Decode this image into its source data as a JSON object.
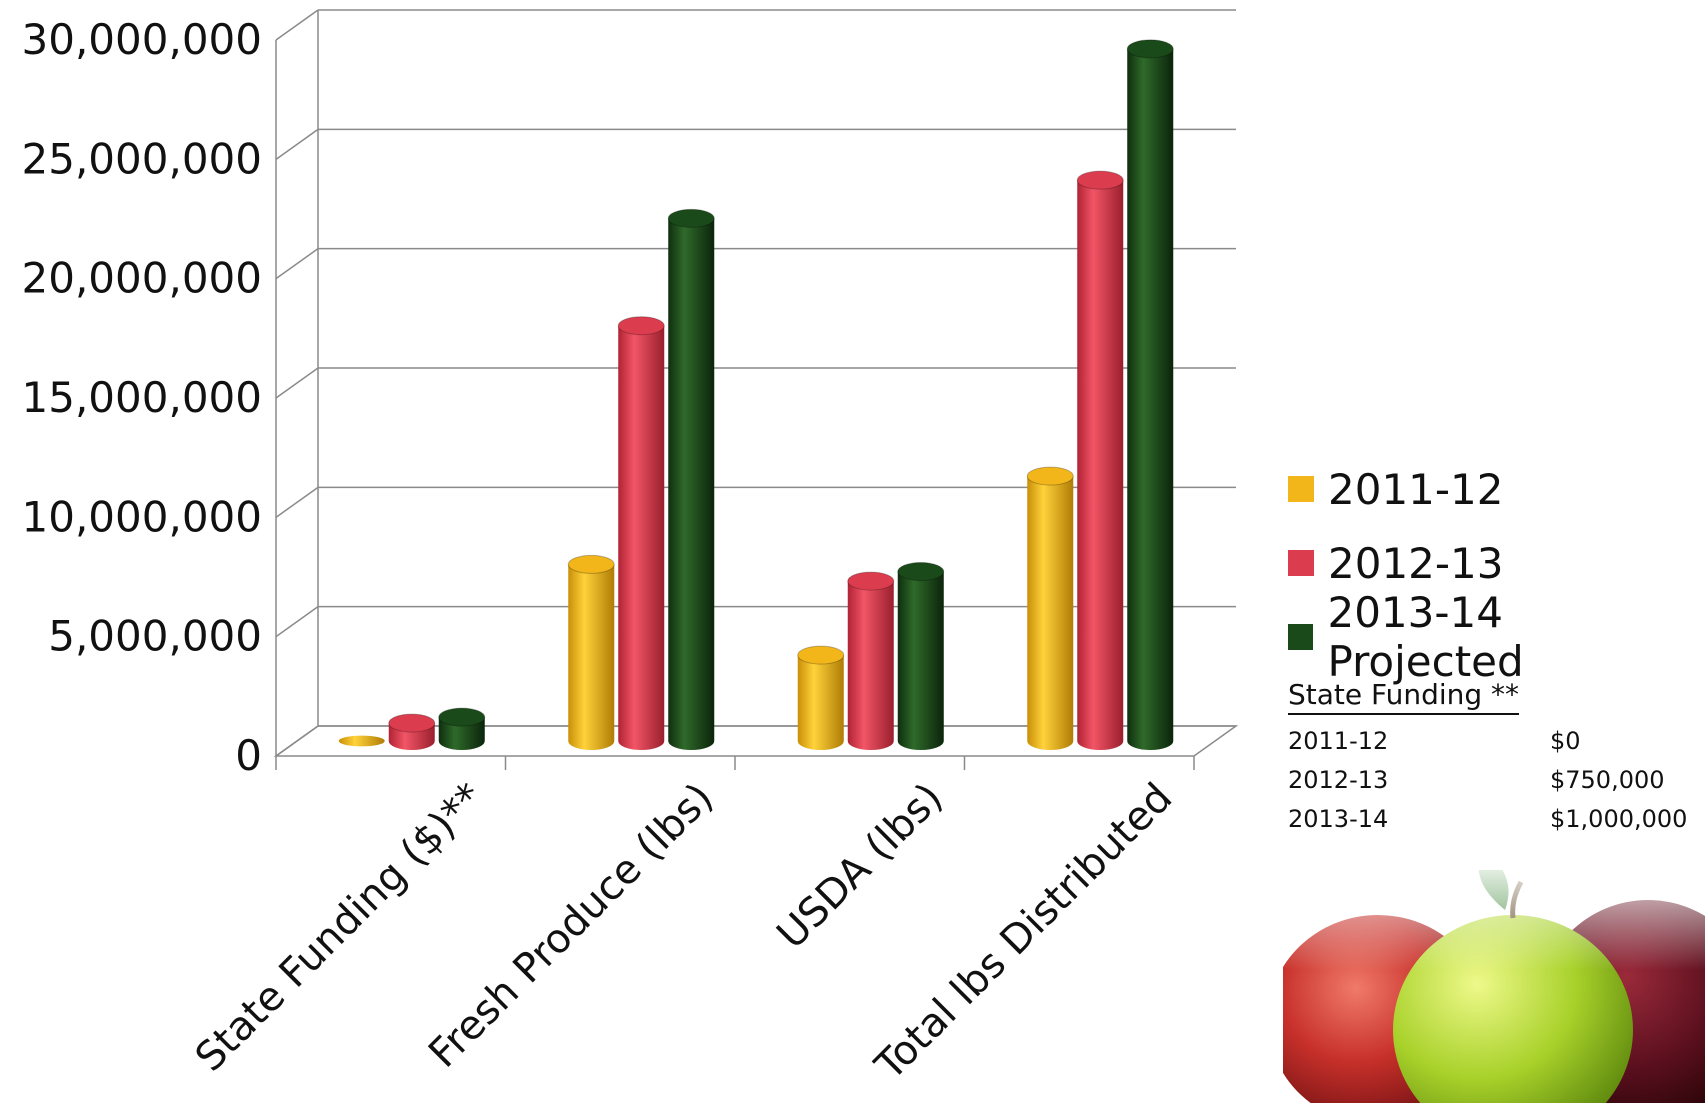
{
  "chart_data": {
    "type": "bar",
    "style": "3d-cylinder",
    "categories": [
      "State Funding ($)**",
      "Fresh Produce (lbs)",
      "USDA (lbs)",
      "Total lbs Distributed"
    ],
    "series": [
      {
        "name": "2011-12",
        "color": "#f2b61b",
        "values": [
          0,
          7400000,
          3600000,
          11100000
        ]
      },
      {
        "name": "2012-13",
        "color": "#dc3d4e",
        "values": [
          750000,
          17400000,
          6700000,
          23500000
        ]
      },
      {
        "name": "2013-14 Projected",
        "color": "#1a4a1a",
        "values": [
          1000000,
          21900000,
          7100000,
          29000000
        ]
      }
    ],
    "yticks": [
      "0",
      "5,000,000",
      "10,000,000",
      "15,000,000",
      "20,000,000",
      "25,000,000",
      "30,000,000"
    ],
    "ylim": [
      0,
      30000000
    ],
    "grid": true,
    "legend_position": "right"
  },
  "state_funding_table": {
    "title": "State Funding **",
    "rows": [
      {
        "year": "2011-12",
        "amount": "$0"
      },
      {
        "year": "2012-13",
        "amount": "$750,000"
      },
      {
        "year": "2013-14",
        "amount": "$1,000,000"
      }
    ]
  },
  "decoration": {
    "image_icon": "apples-image"
  }
}
